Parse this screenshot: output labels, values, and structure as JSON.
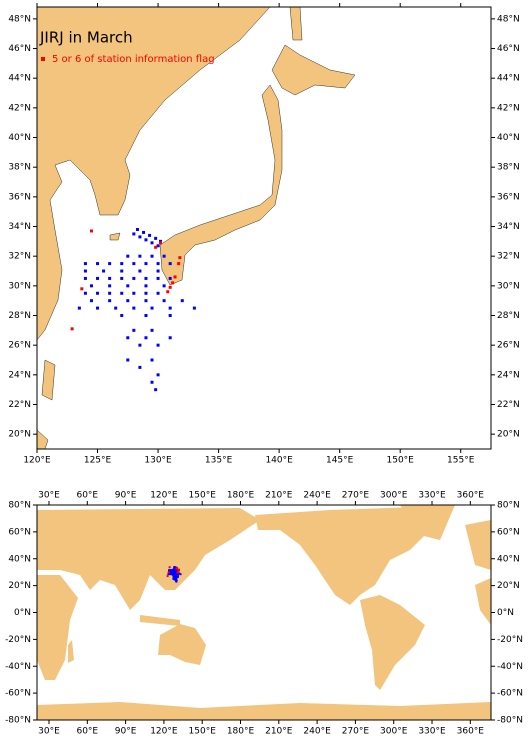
{
  "chart_data": [
    {
      "type": "map",
      "title": "JIRJ in March",
      "xlim": [
        120,
        157.5
      ],
      "ylim": [
        19,
        48.8
      ],
      "xticks": [
        {
          "value": 120,
          "label": "120°E"
        },
        {
          "value": 125,
          "label": "125°E"
        },
        {
          "value": 130,
          "label": "130°E"
        },
        {
          "value": 135,
          "label": "135°E"
        },
        {
          "value": 140,
          "label": "140°E"
        },
        {
          "value": 145,
          "label": "145°E"
        },
        {
          "value": 150,
          "label": "150°E"
        },
        {
          "value": 155,
          "label": "155°E"
        }
      ],
      "yticks": [
        {
          "value": 20,
          "label": "20°N"
        },
        {
          "value": 22,
          "label": "22°N"
        },
        {
          "value": 24,
          "label": "24°N"
        },
        {
          "value": 26,
          "label": "26°N"
        },
        {
          "value": 28,
          "label": "28°N"
        },
        {
          "value": 30,
          "label": "30°N"
        },
        {
          "value": 32,
          "label": "32°N"
        },
        {
          "value": 34,
          "label": "34°N"
        },
        {
          "value": 36,
          "label": "36°N"
        },
        {
          "value": 38,
          "label": "38°N"
        },
        {
          "value": 40,
          "label": "40°N"
        },
        {
          "value": 42,
          "label": "42°N"
        },
        {
          "value": 44,
          "label": "44°N"
        },
        {
          "value": 46,
          "label": "46°N"
        },
        {
          "value": 48,
          "label": "48°N"
        }
      ],
      "series": [
        {
          "color": "#0000ff",
          "lon": [
            124,
            125,
            126,
            127,
            128,
            129,
            130,
            131,
            124,
            125.5,
            127,
            128.5,
            130,
            124,
            125,
            126,
            127,
            128,
            129,
            130,
            131,
            124.5,
            126,
            127.5,
            129,
            130.5,
            124,
            125,
            126,
            127,
            128,
            129,
            130,
            124.5,
            126,
            127.5,
            129,
            130.5,
            132,
            123.5,
            125,
            126.5,
            128,
            129.5,
            131,
            133,
            127,
            129,
            131,
            128,
            129.5,
            127.5,
            129,
            131,
            128.5,
            130,
            127.5,
            129.5,
            128.5,
            130,
            129.5,
            129.8,
            128,
            128.5,
            129,
            129.5,
            130,
            128.3,
            128.8,
            129.3,
            129.8,
            130.2,
            127.5,
            128.5,
            129.5,
            130.5
          ],
          "lat": [
            31.5,
            31.5,
            31.5,
            31.5,
            31.5,
            31.5,
            31.5,
            31.5,
            31,
            31,
            31,
            31,
            31,
            30.5,
            30.5,
            30.5,
            30.5,
            30.5,
            30.5,
            30.5,
            30.5,
            30,
            30,
            30,
            30,
            30,
            29.5,
            29.5,
            29.5,
            29.5,
            29.5,
            29.5,
            29.5,
            29,
            29,
            29,
            29,
            29,
            29,
            28.5,
            28.5,
            28.5,
            28.5,
            28.5,
            28.5,
            28.5,
            28,
            28,
            28,
            27,
            27,
            26.5,
            26.5,
            26.5,
            26,
            26,
            25,
            25,
            24.5,
            24,
            23.5,
            23,
            33.5,
            33.3,
            33.1,
            32.9,
            32.7,
            33.8,
            33.6,
            33.4,
            33.2,
            33,
            32,
            32,
            32,
            32
          ]
        },
        {
          "name": "5 or 6 of station information flag",
          "color": "#ff0000",
          "lon": [
            122.9,
            124.5,
            123.7,
            130.8,
            131,
            131.2,
            131.4,
            131.7,
            131.8,
            129.8,
            130.2
          ],
          "lat": [
            27.1,
            33.7,
            29.8,
            29.6,
            29.9,
            30.2,
            30.6,
            31.5,
            31.9,
            32.6,
            32.9
          ]
        }
      ]
    },
    {
      "type": "map",
      "xlim": [
        20.6,
        376.2
      ],
      "ylim": [
        -80,
        80
      ],
      "xticks": [
        {
          "value": 30,
          "label": "30°E"
        },
        {
          "value": 60,
          "label": "60°E"
        },
        {
          "value": 90,
          "label": "90°E"
        },
        {
          "value": 120,
          "label": "120°E"
        },
        {
          "value": 150,
          "label": "150°E"
        },
        {
          "value": 180,
          "label": "180°E"
        },
        {
          "value": 210,
          "label": "210°E"
        },
        {
          "value": 240,
          "label": "240°E"
        },
        {
          "value": 270,
          "label": "270°E"
        },
        {
          "value": 300,
          "label": "300°E"
        },
        {
          "value": 330,
          "label": "330°E"
        },
        {
          "value": 360,
          "label": "360°E"
        }
      ],
      "yticks": [
        {
          "value": -80,
          "label": "-80°N"
        },
        {
          "value": -60,
          "label": "-60°N"
        },
        {
          "value": -40,
          "label": "-40°N"
        },
        {
          "value": -20,
          "label": "-20°N"
        },
        {
          "value": 0,
          "label": "0°N"
        },
        {
          "value": 20,
          "label": "20°N"
        },
        {
          "value": 40,
          "label": "40°N"
        },
        {
          "value": 60,
          "label": "60°N"
        },
        {
          "value": 80,
          "label": "80°N"
        }
      ]
    }
  ]
}
